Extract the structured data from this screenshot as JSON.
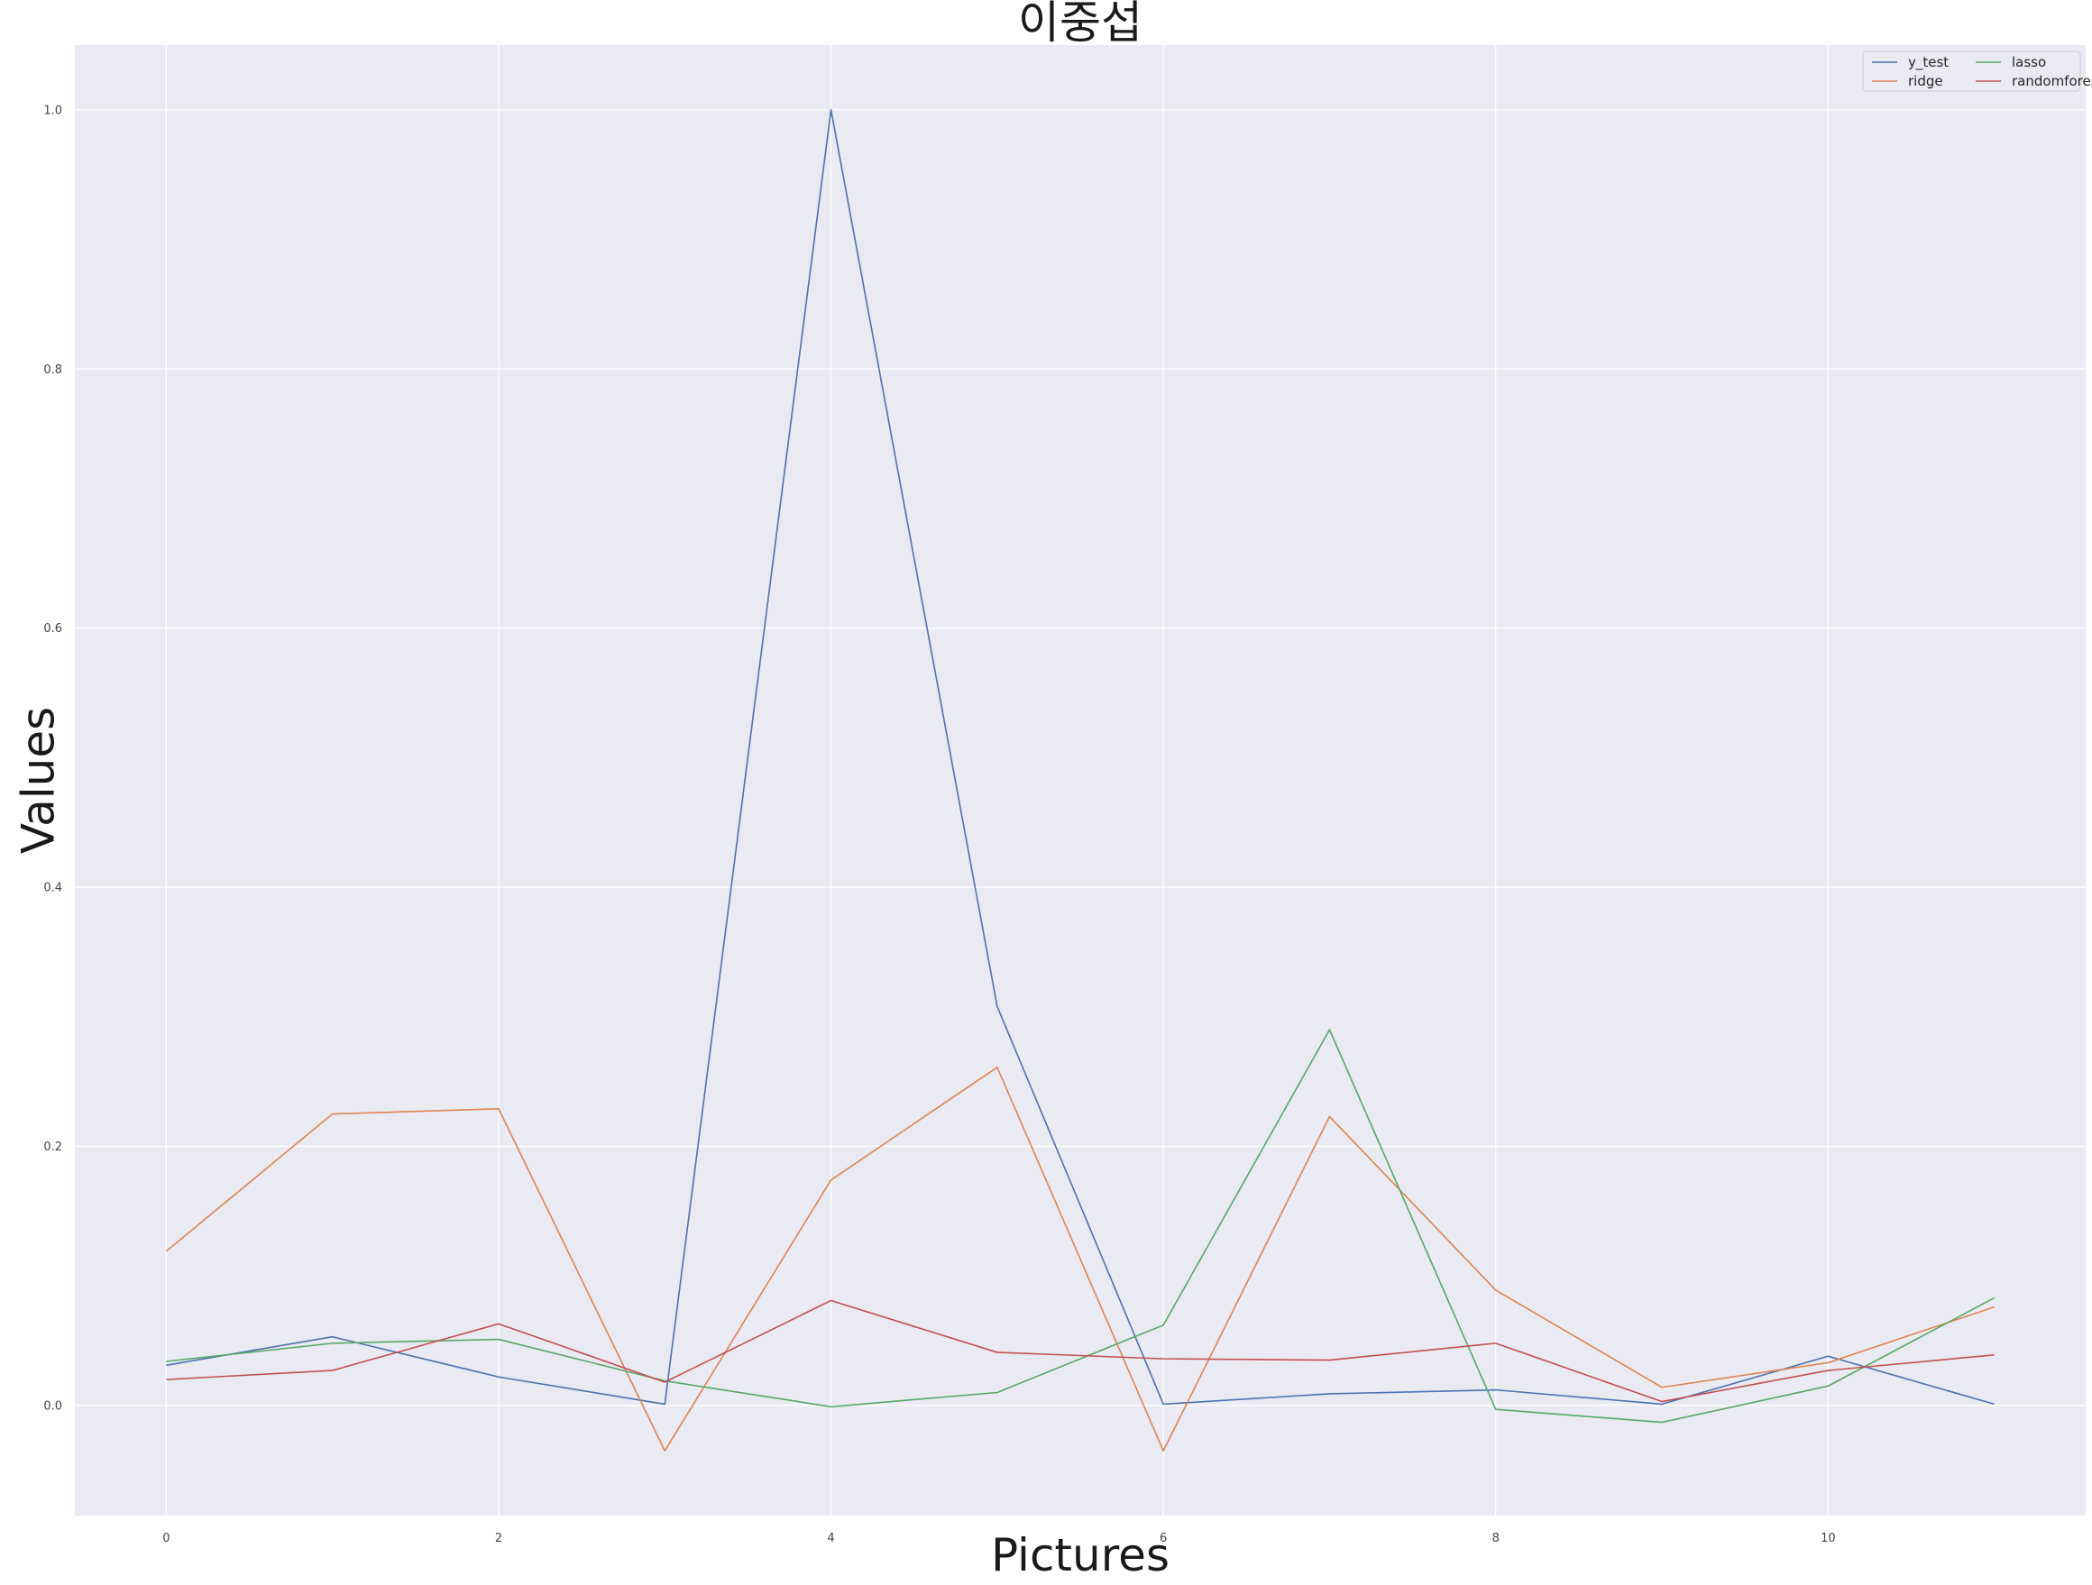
{
  "chart_data": {
    "type": "line",
    "title": "이중섭",
    "xlabel": "Pictures",
    "ylabel": "Values",
    "x": [
      0,
      1,
      2,
      3,
      4,
      5,
      6,
      7,
      8,
      9,
      10,
      11
    ],
    "xlim": [
      -0.55,
      11.55
    ],
    "ylim": [
      -0.085,
      1.05
    ],
    "xticks": [
      "0",
      "2",
      "4",
      "6",
      "8",
      "10"
    ],
    "yticks": [
      "0.0",
      "0.2",
      "0.4",
      "0.6",
      "0.8",
      "1.0"
    ],
    "grid": true,
    "legend_position": "top-right",
    "legend_columns": 2,
    "background": "#eaeaf2",
    "series": [
      {
        "name": "y_test",
        "color": "#4c72b0",
        "values": [
          0.031,
          0.053,
          0.022,
          0.001,
          1.0,
          0.308,
          0.001,
          0.009,
          0.012,
          0.001,
          0.038,
          0.001
        ]
      },
      {
        "name": "ridge",
        "color": "#dd8452",
        "values": [
          0.119,
          0.225,
          0.229,
          -0.035,
          0.174,
          0.261,
          -0.035,
          0.223,
          0.089,
          0.014,
          0.033,
          0.076
        ]
      },
      {
        "name": "lasso",
        "color": "#55a868",
        "values": [
          0.034,
          0.048,
          0.051,
          0.019,
          -0.001,
          0.01,
          0.062,
          0.29,
          -0.003,
          -0.013,
          0.015,
          0.083
        ]
      },
      {
        "name": "randomforest",
        "color": "#c44e52",
        "values": [
          0.02,
          0.027,
          0.063,
          0.018,
          0.081,
          0.041,
          0.036,
          0.035,
          0.048,
          0.003,
          0.027,
          0.039
        ]
      }
    ]
  }
}
